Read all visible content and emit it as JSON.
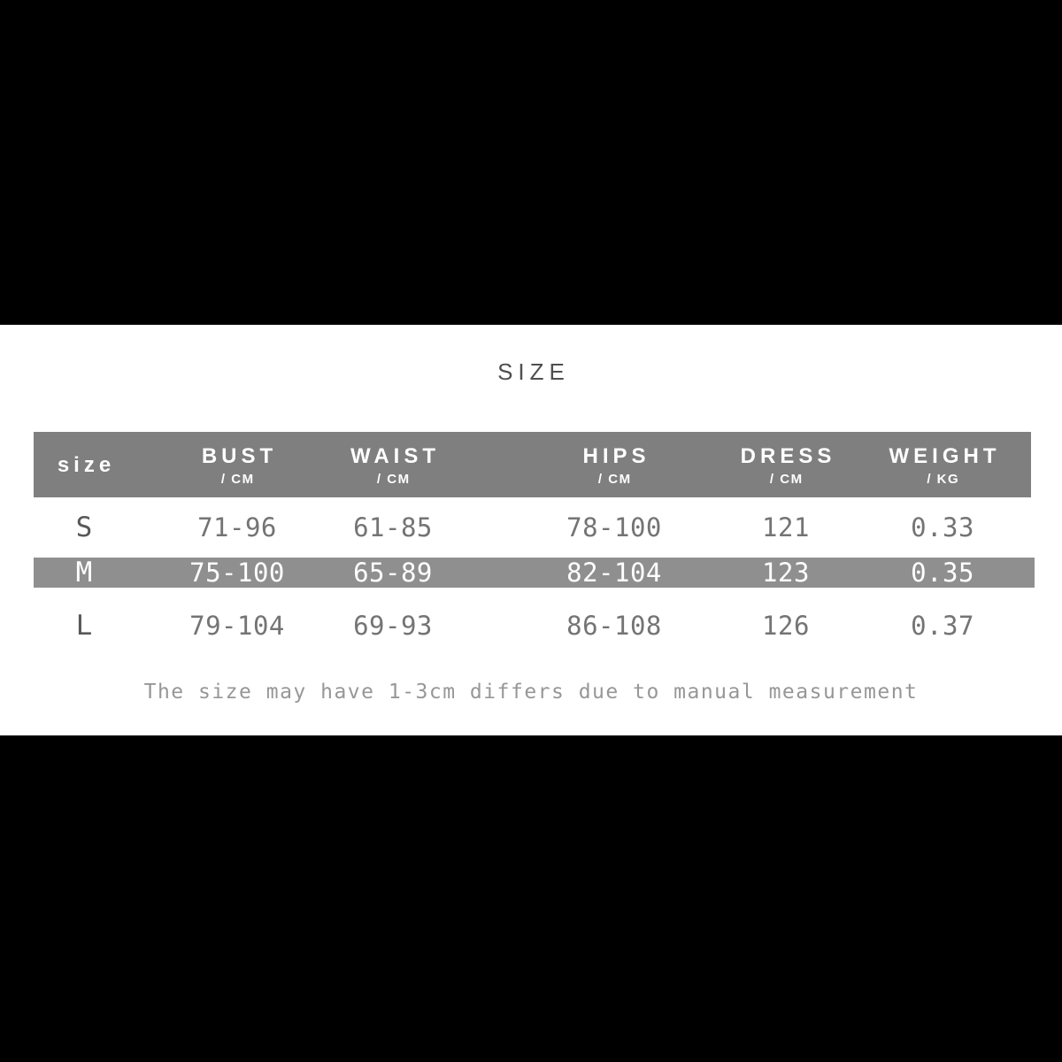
{
  "chart_data": {
    "type": "table",
    "title": "SIZE",
    "size_column_label": "size",
    "columns": [
      {
        "label": "BUST",
        "unit": "/ CM"
      },
      {
        "label": "WAIST",
        "unit": "/ CM"
      },
      {
        "label": "HIPS",
        "unit": "/ CM"
      },
      {
        "label": "DRESS",
        "unit": "/ CM"
      },
      {
        "label": "WEIGHT",
        "unit": "/ KG"
      }
    ],
    "rows": [
      {
        "size": "S",
        "values": [
          "71-96",
          "61-85",
          "78-100",
          "121",
          "0.33"
        ],
        "highlighted": false
      },
      {
        "size": "M",
        "values": [
          "75-100",
          "65-89",
          "82-104",
          "123",
          "0.35"
        ],
        "highlighted": true
      },
      {
        "size": "L",
        "values": [
          "79-104",
          "69-93",
          "86-108",
          "126",
          "0.37"
        ],
        "highlighted": false
      }
    ],
    "note": "The size may have 1-3cm differs due to manual measurement",
    "highlighted_row": "M"
  },
  "colors": {
    "page_bg": "#000000",
    "panel_bg": "#ffffff",
    "header_bg": "#7f7f7f",
    "highlight_bg": "#8f8f8f",
    "header_text": "#ffffff",
    "title_text": "#4f4f4f",
    "body_text": "#747474",
    "size_text": "#585858",
    "note_text": "#979797"
  }
}
